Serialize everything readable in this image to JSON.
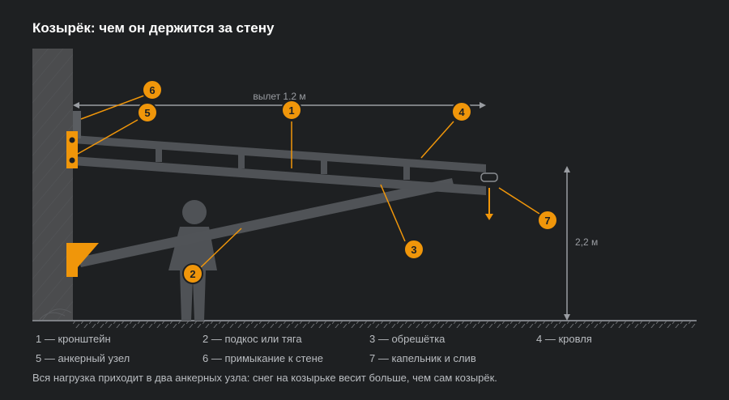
{
  "title": "Козырёк: чем он держится за стену",
  "dimensions": {
    "overhang": "вылет 1,2 м",
    "height": "2,2 м"
  },
  "markers": [
    "1",
    "2",
    "3",
    "4",
    "5",
    "6",
    "7"
  ],
  "legend": [
    "1 — кронштейн",
    "2 — подкос или тяга",
    "3 — обрешётка",
    "4 — кровля",
    "5 — анкерный узел",
    "6 — примыкание к стене",
    "7 — капельник и слив"
  ],
  "caption": "Вся нагрузка приходит в два анкерных узла: снег на козырьке весит больше, чем сам козырёк.",
  "colors": {
    "background": "#1e2022",
    "accent": "#f0960a",
    "structure": "#4a4d51",
    "wall": "#4b4c4e",
    "text": "#b9bcc0"
  }
}
